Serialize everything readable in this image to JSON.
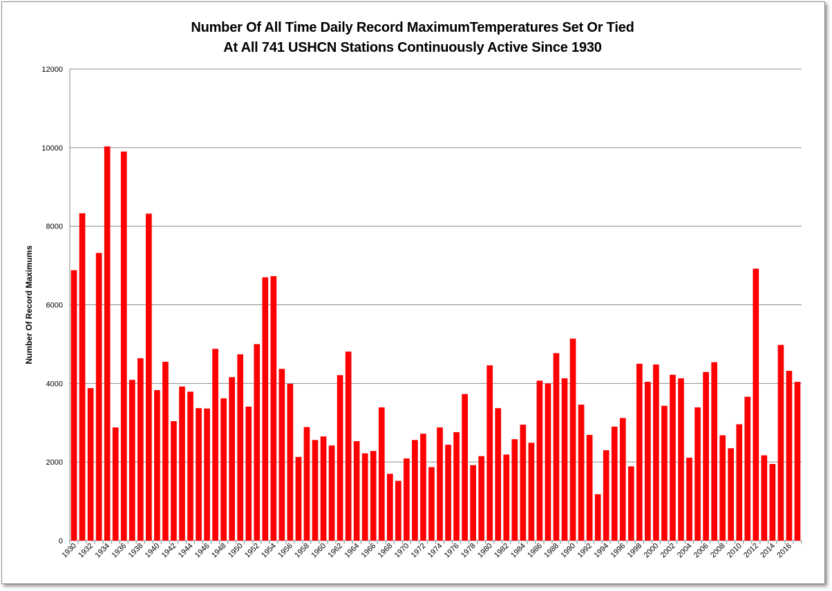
{
  "chart_data": {
    "type": "bar",
    "title": "Number Of All Time Daily Record MaximumTemperatures Set Or Tied",
    "subtitle": "At All 741 USHCN Stations Continuously Active Since 1930",
    "xlabel": "",
    "ylabel": "Number Of Record Maximums",
    "ylim": [
      0,
      12000
    ],
    "yticks": [
      "0",
      "2000",
      "4000",
      "6000",
      "8000",
      "10000",
      "12000"
    ],
    "grid": true,
    "legend": "none",
    "bar_color": "#ff0000",
    "categories": [
      "1930",
      "1931",
      "1932",
      "1933",
      "1934",
      "1935",
      "1936",
      "1937",
      "1938",
      "1939",
      "1940",
      "1941",
      "1942",
      "1943",
      "1944",
      "1945",
      "1946",
      "1947",
      "1948",
      "1949",
      "1950",
      "1951",
      "1952",
      "1953",
      "1954",
      "1955",
      "1956",
      "1957",
      "1958",
      "1959",
      "1960",
      "1961",
      "1962",
      "1963",
      "1964",
      "1965",
      "1966",
      "1967",
      "1968",
      "1969",
      "1970",
      "1971",
      "1972",
      "1973",
      "1974",
      "1975",
      "1976",
      "1977",
      "1978",
      "1979",
      "1980",
      "1981",
      "1982",
      "1983",
      "1984",
      "1985",
      "1986",
      "1987",
      "1988",
      "1989",
      "1990",
      "1991",
      "1992",
      "1993",
      "1994",
      "1995",
      "1996",
      "1997",
      "1998",
      "1999",
      "2000",
      "2001",
      "2002",
      "2003",
      "2004",
      "2005",
      "2006",
      "2007",
      "2008",
      "2009",
      "2010",
      "2011",
      "2012",
      "2013",
      "2014",
      "2015",
      "2016",
      "2017"
    ],
    "xtick_labels": [
      "1930",
      "1932",
      "1934",
      "1936",
      "1938",
      "1940",
      "1942",
      "1944",
      "1946",
      "1948",
      "1950",
      "1952",
      "1954",
      "1956",
      "1958",
      "1960",
      "1962",
      "1964",
      "1966",
      "1968",
      "1970",
      "1972",
      "1974",
      "1976",
      "1978",
      "1980",
      "1982",
      "1984",
      "1986",
      "1988",
      "1990",
      "1992",
      "1994",
      "1996",
      "1998",
      "2000",
      "2002",
      "2004",
      "2006",
      "2008",
      "2010",
      "2012",
      "2014",
      "2016"
    ],
    "values": [
      6880,
      8330,
      3880,
      7320,
      10030,
      2880,
      9900,
      4090,
      4640,
      8320,
      3830,
      4550,
      3040,
      3920,
      3790,
      3370,
      3360,
      4880,
      3620,
      4160,
      4740,
      3410,
      5000,
      6700,
      6730,
      4370,
      3990,
      2130,
      2890,
      2560,
      2650,
      2420,
      4210,
      4810,
      2530,
      2220,
      2280,
      3390,
      1700,
      1520,
      2090,
      2560,
      2720,
      1870,
      2880,
      2440,
      2760,
      3730,
      1920,
      2150,
      4460,
      3370,
      2190,
      2580,
      2950,
      2490,
      4070,
      4000,
      4770,
      4130,
      5140,
      3460,
      2690,
      1180,
      2300,
      2900,
      3120,
      1890,
      4500,
      4040,
      4480,
      3430,
      4220,
      4130,
      2110,
      3390,
      4290,
      4540,
      2680,
      2350,
      2960,
      3660,
      6920,
      2170,
      1950,
      4980,
      4320,
      4040
    ]
  }
}
